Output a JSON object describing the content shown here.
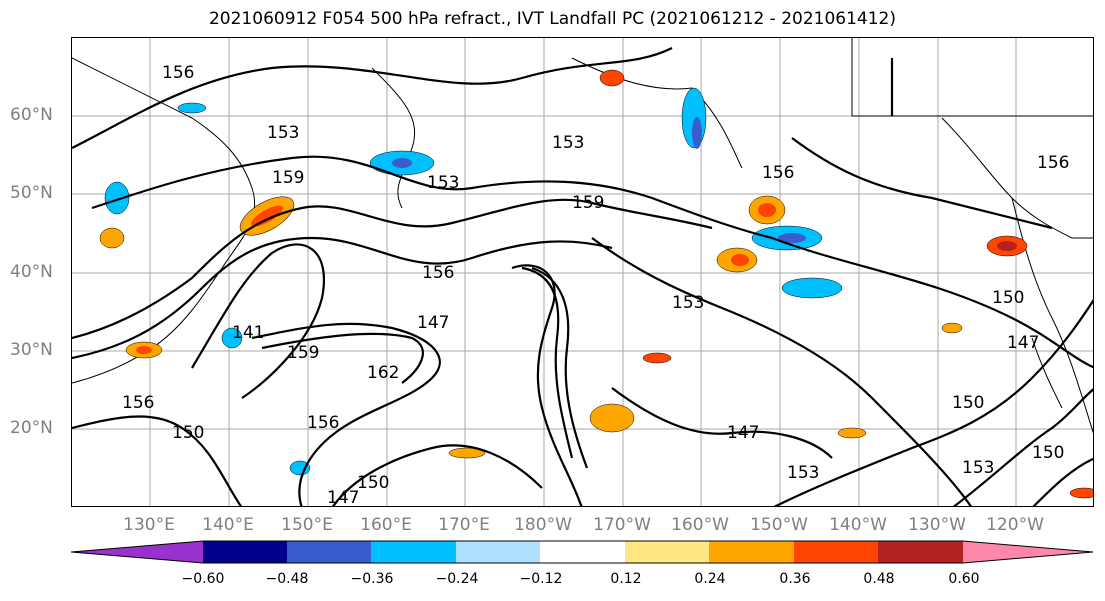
{
  "title": "2021060912 F054 500 hPa refract., IVT Landfall PC (2021061212 - 2021061412)",
  "lat_labels": [
    "60°N",
    "50°N",
    "40°N",
    "30°N",
    "20°N"
  ],
  "lon_labels": [
    "130°E",
    "140°E",
    "150°E",
    "160°E",
    "170°E",
    "180°W",
    "170°W",
    "160°W",
    "150°W",
    "140°W",
    "130°W",
    "120°W"
  ],
  "contour_labels": [
    "156",
    "153",
    "159",
    "153",
    "153",
    "159",
    "156",
    "153",
    "156",
    "147",
    "141",
    "159",
    "162",
    "156",
    "150",
    "147",
    "150",
    "153",
    "150",
    "147",
    "150",
    "147",
    "153",
    "150",
    "156",
    "156"
  ],
  "colorbar": {
    "ticks": [
      "−0.60",
      "−0.48",
      "−0.36",
      "−0.24",
      "−0.12",
      "0.12",
      "0.24",
      "0.36",
      "0.48",
      "0.60"
    ],
    "colors": [
      "#9932cc",
      "#00008b",
      "#3a5ccc",
      "#00bfff",
      "#b0e0ff",
      "#ffffff",
      "#ffe680",
      "#ffa500",
      "#ff4500",
      "#b22222",
      "#ff88aa"
    ]
  }
}
